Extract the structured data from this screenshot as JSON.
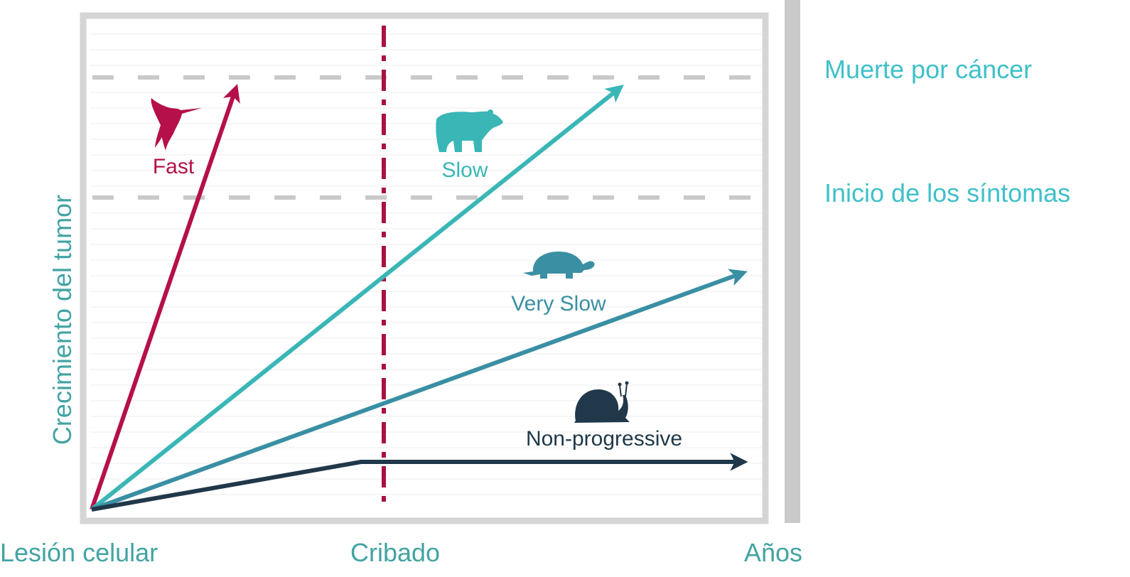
{
  "y_axis_label": "Crecimiento del tumor",
  "x_axis": {
    "start_label": "Lesión celular",
    "middle_label": "Cribado",
    "end_label": "Años"
  },
  "thresholds": {
    "upper": "Muerte por cáncer",
    "lower": "Inicio de los síntomas"
  },
  "categories": {
    "fast": "Fast",
    "slow": "Slow",
    "very_slow": "Very Slow",
    "non_progressive": "Non-progressive"
  },
  "colors": {
    "fast": "#b5104a",
    "slow": "#3ab6b6",
    "very_slow": "#3a8fa3",
    "non_progressive": "#20384a",
    "axis_text": "#43a3a3",
    "threshold_text": "#3fc0c8",
    "screening_line": "#a8123f",
    "threshold_line": "#c9c9c9"
  },
  "icons": {
    "fast": "hummingbird-icon",
    "slow": "bear-icon",
    "very_slow": "turtle-icon",
    "non_progressive": "snail-icon"
  }
}
